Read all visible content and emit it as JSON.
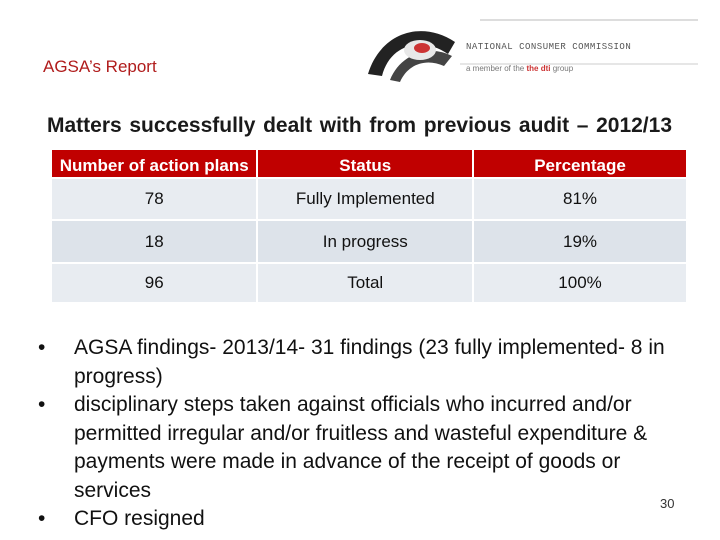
{
  "header": {
    "title": "AGSA’s Report"
  },
  "logo": {
    "org_name": "NATIONAL CONSUMER COMMISSION",
    "tagline_prefix": "a member of the",
    "tagline_dti": "the dti",
    "tagline_suffix": "group"
  },
  "heading": "Matters successfully dealt with from previous audit – 2012/13",
  "table": {
    "headers": [
      "Number of action plans",
      "Status",
      "Percentage"
    ],
    "rows": [
      [
        "78",
        "Fully Implemented",
        "81%"
      ],
      [
        "18",
        "In progress",
        "19%"
      ],
      [
        "96",
        "Total",
        "100%"
      ]
    ]
  },
  "bullets": [
    "AGSA findings- 2013/14- 31 findings (23 fully implemented- 8 in progress)",
    "disciplinary steps taken against officials who incurred and/or permitted irregular and/or fruitless and wasteful expenditure &  payments were made in advance of the receipt of goods or services",
    "CFO resigned"
  ],
  "page_number": "30",
  "colors": {
    "accent": "#c00000",
    "title": "#b01c1c",
    "row_bg": "#e8ecf1"
  }
}
